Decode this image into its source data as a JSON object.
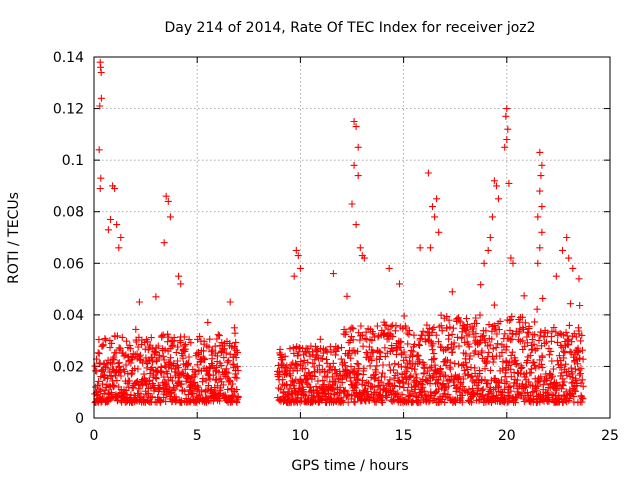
{
  "chart_data": {
    "type": "scatter",
    "title": "Day 214 of 2014, Rate Of TEC Index for receiver joz2",
    "xlabel": "GPS time / hours",
    "ylabel": "ROTI / TECUs",
    "xlim": [
      0,
      25
    ],
    "ylim": [
      0,
      0.14
    ],
    "xticks": [
      0,
      5,
      10,
      15,
      20,
      25
    ],
    "xtick_labels": [
      "0",
      "5",
      "10",
      "15",
      "20",
      "25"
    ],
    "yticks": [
      0,
      0.02,
      0.04,
      0.06,
      0.08,
      0.1,
      0.12,
      0.14
    ],
    "ytick_labels": [
      "0",
      "0.02",
      "0.04",
      "0.06",
      "0.08",
      "0.1",
      "0.12",
      "0.14"
    ],
    "grid": true,
    "marker": "+",
    "color": "#ff0000",
    "series": [
      {
        "name": "ROTI",
        "note": "dense band of points roughly 0.005–0.04 TECU/s across 0–7 h and 9–24 h; gap ~7–9 h; points below are representative peaks",
        "points": [
          [
            0.3,
            0.138
          ],
          [
            0.32,
            0.136
          ],
          [
            0.35,
            0.134
          ],
          [
            0.28,
            0.121
          ],
          [
            0.36,
            0.124
          ],
          [
            0.25,
            0.104
          ],
          [
            0.33,
            0.093
          ],
          [
            0.3,
            0.089
          ],
          [
            0.9,
            0.09
          ],
          [
            1.0,
            0.089
          ],
          [
            0.8,
            0.077
          ],
          [
            1.1,
            0.075
          ],
          [
            1.3,
            0.07
          ],
          [
            1.2,
            0.066
          ],
          [
            0.7,
            0.073
          ],
          [
            3.5,
            0.086
          ],
          [
            3.6,
            0.084
          ],
          [
            3.7,
            0.078
          ],
          [
            3.4,
            0.068
          ],
          [
            4.1,
            0.055
          ],
          [
            4.2,
            0.052
          ],
          [
            3.0,
            0.047
          ],
          [
            2.2,
            0.045
          ],
          [
            6.6,
            0.045
          ],
          [
            6.8,
            0.035
          ],
          [
            9.8,
            0.065
          ],
          [
            9.9,
            0.063
          ],
          [
            10.0,
            0.058
          ],
          [
            9.7,
            0.055
          ],
          [
            11.6,
            0.056
          ],
          [
            12.6,
            0.115
          ],
          [
            12.7,
            0.113
          ],
          [
            12.8,
            0.105
          ],
          [
            12.6,
            0.098
          ],
          [
            12.8,
            0.094
          ],
          [
            12.5,
            0.083
          ],
          [
            12.7,
            0.075
          ],
          [
            12.9,
            0.066
          ],
          [
            13.0,
            0.063
          ],
          [
            13.1,
            0.062
          ],
          [
            16.2,
            0.095
          ],
          [
            16.6,
            0.085
          ],
          [
            16.4,
            0.082
          ],
          [
            16.5,
            0.078
          ],
          [
            16.7,
            0.072
          ],
          [
            16.3,
            0.066
          ],
          [
            15.8,
            0.066
          ],
          [
            14.3,
            0.058
          ],
          [
            14.8,
            0.052
          ],
          [
            20.0,
            0.12
          ],
          [
            19.95,
            0.117
          ],
          [
            20.05,
            0.112
          ],
          [
            20.0,
            0.108
          ],
          [
            19.9,
            0.105
          ],
          [
            19.4,
            0.092
          ],
          [
            19.5,
            0.09
          ],
          [
            20.1,
            0.091
          ],
          [
            19.6,
            0.085
          ],
          [
            19.3,
            0.078
          ],
          [
            19.2,
            0.07
          ],
          [
            19.1,
            0.065
          ],
          [
            20.2,
            0.062
          ],
          [
            20.3,
            0.06
          ],
          [
            18.9,
            0.06
          ],
          [
            21.6,
            0.103
          ],
          [
            21.7,
            0.098
          ],
          [
            21.65,
            0.094
          ],
          [
            21.6,
            0.088
          ],
          [
            21.7,
            0.082
          ],
          [
            21.5,
            0.078
          ],
          [
            21.7,
            0.072
          ],
          [
            21.6,
            0.066
          ],
          [
            21.5,
            0.06
          ],
          [
            22.7,
            0.065
          ],
          [
            22.9,
            0.07
          ],
          [
            23.0,
            0.062
          ],
          [
            23.2,
            0.058
          ],
          [
            23.5,
            0.054
          ],
          [
            22.4,
            0.055
          ]
        ]
      }
    ]
  }
}
